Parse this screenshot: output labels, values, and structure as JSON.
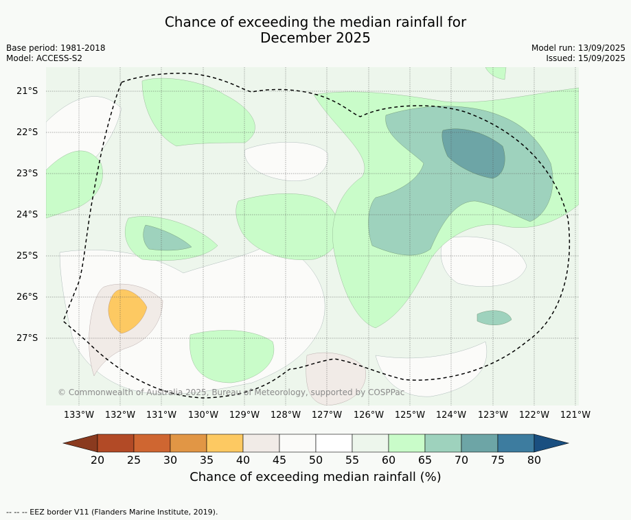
{
  "title_line1": "Chance of exceeding the median rainfall for",
  "title_line2": "December 2025",
  "base_period": "Base period: 1981-2018",
  "model": "Model: ACCESS-S2",
  "model_run": "Model run: 13/09/2025",
  "issued": "Issued: 15/09/2025",
  "latitude_labels": [
    "21°S",
    "22°S",
    "23°S",
    "24°S",
    "25°S",
    "26°S",
    "27°S"
  ],
  "longitude_labels": [
    "133°W",
    "132°W",
    "131°W",
    "130°W",
    "129°W",
    "128°W",
    "127°W",
    "126°W",
    "125°W",
    "124°W",
    "123°W",
    "122°W",
    "121°W"
  ],
  "colorbar": {
    "title": "Chance of exceeding median rainfall (%)",
    "tick_labels": [
      "20",
      "25",
      "30",
      "35",
      "40",
      "45",
      "50",
      "55",
      "60",
      "65",
      "70",
      "75",
      "80"
    ],
    "colors": [
      "#8a3a1f",
      "#b24a26",
      "#cf6631",
      "#e19645",
      "#fdc962",
      "#f1ebe7",
      "#fbfbf9",
      "#ffffff",
      "#edf6ec",
      "#c9fcc9",
      "#9ed2bd",
      "#6da5a6",
      "#3d7c9f",
      "#1a4f80"
    ]
  },
  "copyright": "© Commonwealth of Australia 2025, Bureau of Meteorology, supported by COSPPac",
  "footer": "-- --  -- EEZ border V11 (Flanders Marine Institute, 2019)."
}
